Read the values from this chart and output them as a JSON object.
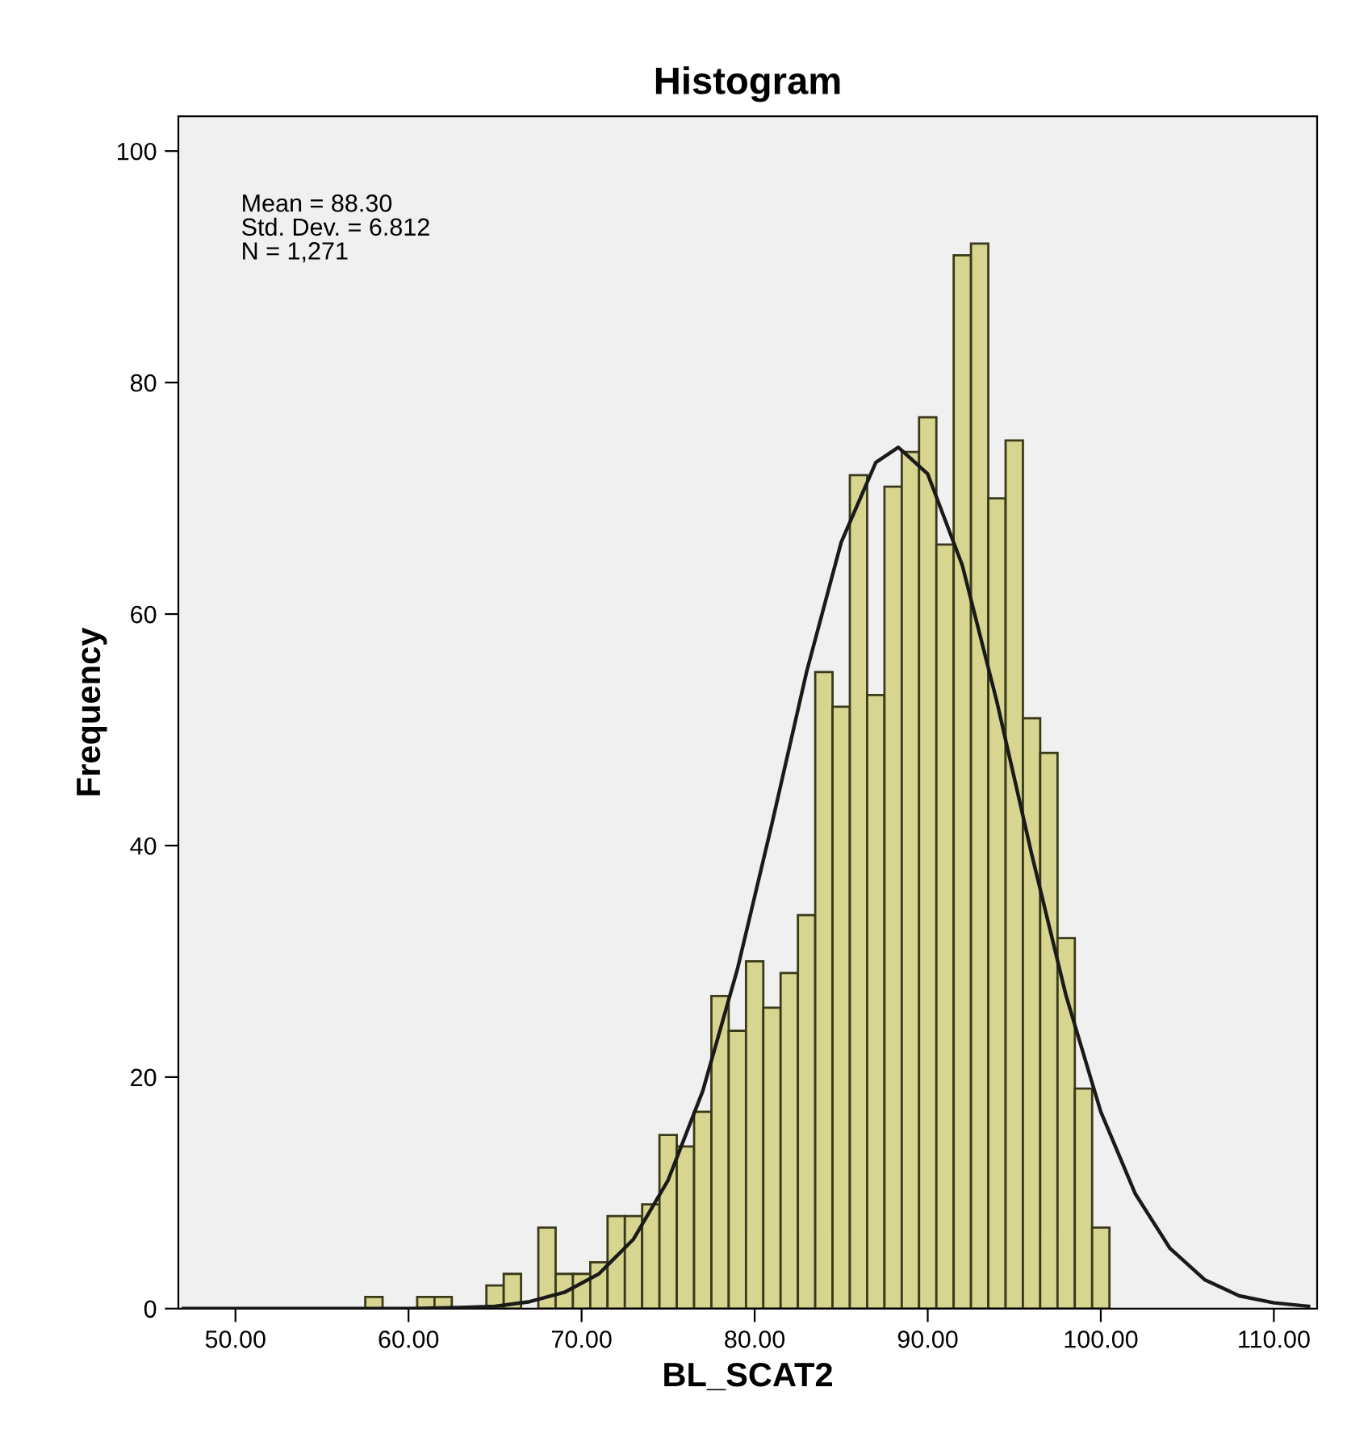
{
  "chart_data": {
    "type": "histogram",
    "title": "Histogram",
    "xlabel": "BL_SCAT2",
    "ylabel": "Frequency",
    "bins": [
      57.5,
      58.5,
      59.5,
      60.5,
      61.5,
      62.5,
      63.5,
      64.5,
      65.5,
      66.5,
      67.5,
      68.5,
      69.5,
      70.5,
      71.5,
      72.5,
      73.5,
      74.5,
      75.5,
      76.5,
      77.5,
      78.5,
      79.5,
      80.5,
      81.5,
      82.5,
      83.5,
      84.5,
      85.5,
      86.5,
      87.5,
      88.5,
      89.5,
      90.5,
      91.5,
      92.5,
      93.5,
      94.5,
      95.5,
      96.5,
      97.5,
      98.5,
      99.5,
      100.5
    ],
    "values": [
      1,
      0,
      0,
      1,
      1,
      0,
      0,
      2,
      3,
      0,
      7,
      3,
      3,
      4,
      8,
      8,
      9,
      15,
      14,
      17,
      27,
      24,
      30,
      26,
      29,
      34,
      55,
      52,
      72,
      53,
      71,
      74,
      77,
      66,
      91,
      92,
      70,
      75,
      51,
      48,
      32,
      19,
      7
    ],
    "color": "#d8d590",
    "series": [
      {
        "type": "line",
        "color": "#1a1a1a",
        "x": [
          47,
          55,
          60,
          63,
          65,
          67,
          69,
          71,
          73,
          75,
          77,
          79,
          81,
          83,
          85,
          87,
          88.3,
          90,
          92,
          94,
          96,
          98,
          100,
          102,
          104,
          106,
          108,
          110,
          112
        ],
        "values": [
          0,
          0,
          0,
          0.1,
          0.2,
          0.6,
          1.4,
          3,
          6,
          11.1,
          18.8,
          29.3,
          41.9,
          55,
          66.2,
          73.1,
          74.4,
          72.1,
          64.2,
          52.4,
          39.3,
          27,
          17,
          9.9,
          5.2,
          2.5,
          1.1,
          0.5,
          0.2
        ]
      }
    ],
    "xlim": [
      46.7,
      112.5
    ],
    "ylim": [
      0,
      103
    ],
    "xticks": [
      {
        "value": 50,
        "label": "50.00"
      },
      {
        "value": 60,
        "label": "60.00"
      },
      {
        "value": 70,
        "label": "70.00"
      },
      {
        "value": 80,
        "label": "80.00"
      },
      {
        "value": 90,
        "label": "90.00"
      },
      {
        "value": 100,
        "label": "100.00"
      },
      {
        "value": 110,
        "label": "110.00"
      }
    ],
    "yticks": [
      0,
      20,
      40,
      60,
      80,
      100
    ],
    "annotations": [
      "Mean = 88.30",
      "Std. Dev. = 6.812",
      "N = 1,271"
    ],
    "grid": false
  }
}
